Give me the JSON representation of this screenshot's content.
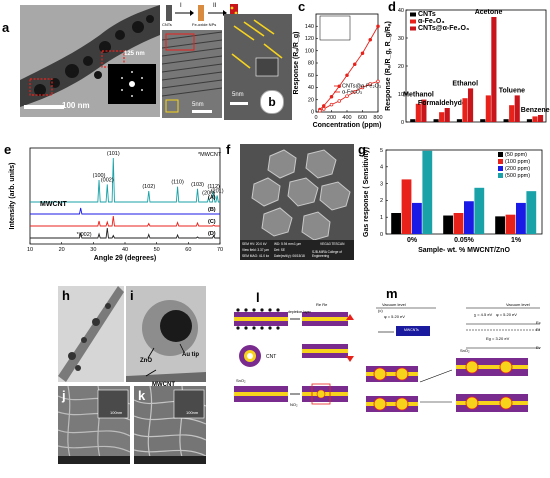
{
  "panels": {
    "a": {
      "letter": "a",
      "scale_main": "100 nm",
      "scale_inset": "5nm",
      "dim_label": "125 nm",
      "inset_letter": "b",
      "inset_scale": "5nm",
      "flow": {
        "left": "CNTs",
        "step1": "I",
        "step2": "II",
        "mid": "Fe-oxide NPs",
        "right": ""
      }
    },
    "c": {
      "letter": "c",
      "legend": [
        "CNTs@α-Fe₂O₃",
        "α-Fe₂O₃"
      ]
    },
    "d": {
      "letter": "d",
      "legend": [
        "CNTs",
        "α-Fe₂O₃",
        "CNTs@α-Fe₂O₃"
      ],
      "annotations": [
        "Methanol",
        "Formaldehyde",
        "Ethanol",
        "Acetone",
        "Toluene",
        "Benzene"
      ]
    },
    "e": {
      "letter": "e",
      "tag": "*MWCNT",
      "mwcnt": "MWCNT",
      "peak_002": "*(002)",
      "peaks": [
        "(100)",
        "(002)",
        "(101)",
        "(102)",
        "(110)",
        "(103)",
        "(200)",
        "(112)",
        "(201)"
      ],
      "series_tags": [
        "(A)",
        "(B)",
        "(C)",
        "(D)"
      ]
    },
    "f": {
      "letter": "f",
      "info": [
        "SEM HV: 20.0 kV",
        "WD: 5.94 mm",
        "View field: 3.37 µm",
        "Det: SE",
        "SEM MAG: 41.0 kx",
        "1 µm",
        "Date(m/d/y): 06/15/18",
        "VEGA3 TESCAN",
        "SJB-MIRA College of Engineering"
      ]
    },
    "g": {
      "letter": "g",
      "legend": [
        "(50 ppm)",
        "(100 ppm)",
        "(200 ppm)",
        "(500 ppm)"
      ]
    },
    "h": {
      "letter": "h"
    },
    "i": {
      "letter": "i",
      "labels": [
        "Au tip",
        "ZnO",
        "MWCNT"
      ]
    },
    "j": {
      "letter": "j",
      "inset_scale": "100nm"
    },
    "k": {
      "letter": "k",
      "inset_scale": "100nm"
    },
    "l": {
      "letter": "l",
      "labels": [
        "Re Re",
        "depletion layer",
        "CNT",
        "SnO₂",
        "NO₂"
      ]
    },
    "m": {
      "letter": "m",
      "labels": [
        "Vacuum level",
        "Vacuum level",
        "φ = 5.20 eV",
        "χ = 4.5 eV",
        "φ = 5.20 eV",
        "Eg = 3.20 eV",
        "Ec",
        "Ef",
        "Ev",
        "(c)",
        "MWCNTs",
        "SnO₂"
      ]
    }
  },
  "colors": {
    "black": "#000000",
    "red": "#e8221b",
    "darkred": "#c8151b",
    "blue": "#1a1ae6",
    "teal": "#19a2a8",
    "green": "#2e8b2e",
    "purple": "#7a2c8e",
    "yellow": "#f7d31c"
  },
  "chart_data": [
    {
      "panel": "c",
      "type": "line",
      "title": "",
      "xlabel": "Concentration (ppm)",
      "ylabel": "Response (Rₐ/R_g)",
      "xlim": [
        0,
        800
      ],
      "ylim": [
        0,
        160
      ],
      "xticks": [
        0,
        200,
        400,
        600,
        800
      ],
      "yticks": [
        0,
        20,
        40,
        60,
        80,
        100,
        120,
        140
      ],
      "series": [
        {
          "name": "CNTs@α-Fe₂O₃",
          "x": [
            50,
            100,
            200,
            300,
            400,
            500,
            600,
            700,
            800
          ],
          "y": [
            4,
            10,
            25,
            42,
            60,
            78,
            96,
            118,
            140
          ]
        },
        {
          "name": "α-Fe₂O₃",
          "x": [
            50,
            100,
            200,
            300,
            400,
            500,
            600,
            700,
            800
          ],
          "y": [
            2,
            5,
            12,
            18,
            26,
            33,
            40,
            46,
            50
          ]
        }
      ]
    },
    {
      "panel": "d",
      "type": "bar",
      "title": "",
      "ylabel": "Response (Rₐ/R_g, R_g/Rₐ)",
      "ylim": [
        0,
        40
      ],
      "yticks": [
        0,
        10,
        20,
        30,
        40
      ],
      "categories": [
        "Methanol",
        "Formaldehyde",
        "Ethanol",
        "Acetone",
        "Toluene",
        "Benzene"
      ],
      "series": [
        {
          "name": "CNTs",
          "values": [
            1.0,
            1.0,
            1.0,
            1.0,
            1.0,
            1.0
          ]
        },
        {
          "name": "α-Fe₂O₃",
          "values": [
            6.5,
            3.5,
            8.5,
            9.5,
            6.0,
            2.0
          ]
        },
        {
          "name": "CNTs@α-Fe₂O₃",
          "values": [
            8.0,
            5.0,
            12.0,
            37.5,
            9.5,
            2.5
          ]
        }
      ]
    },
    {
      "panel": "e",
      "type": "line",
      "title": "",
      "xlabel": "Angle 2θ (degrees)",
      "ylabel": "Intensity (arb. units)",
      "xlim": [
        10,
        70
      ],
      "xticks": [
        10,
        20,
        30,
        40,
        50,
        60,
        70
      ],
      "series": [
        {
          "name": "(A)",
          "peaks_2theta": [
            31.8,
            34.4,
            36.3,
            47.5,
            56.6,
            62.9,
            66.4,
            68.0,
            69.1
          ]
        },
        {
          "name": "(B)",
          "peaks_2theta": [
            26.0
          ]
        },
        {
          "name": "(C)",
          "peaks_2theta": [
            31.8,
            34.4,
            36.3,
            47.5,
            56.6,
            62.9,
            68.0
          ]
        },
        {
          "name": "(D)",
          "peaks_2theta": [
            26.0,
            31.8,
            34.4,
            36.3,
            47.5,
            56.6,
            62.9,
            68.0
          ]
        }
      ]
    },
    {
      "panel": "g",
      "type": "bar",
      "title": "",
      "xlabel": "Sample- wt. % MWCNT/ZnO",
      "ylabel": "Gas response ( Sensitivity)",
      "ylim": [
        0,
        5
      ],
      "yticks": [
        0,
        1,
        2,
        3,
        4,
        5
      ],
      "categories": [
        "0%",
        "0.05%",
        "1%"
      ],
      "series": [
        {
          "name": "(50 ppm)",
          "values": [
            1.25,
            1.1,
            1.05
          ]
        },
        {
          "name": "(100 ppm)",
          "values": [
            3.25,
            1.25,
            1.15
          ]
        },
        {
          "name": "(200 ppm)",
          "values": [
            1.85,
            1.95,
            1.85
          ]
        },
        {
          "name": "(500 ppm)",
          "values": [
            4.95,
            2.75,
            2.55
          ]
        }
      ]
    }
  ]
}
